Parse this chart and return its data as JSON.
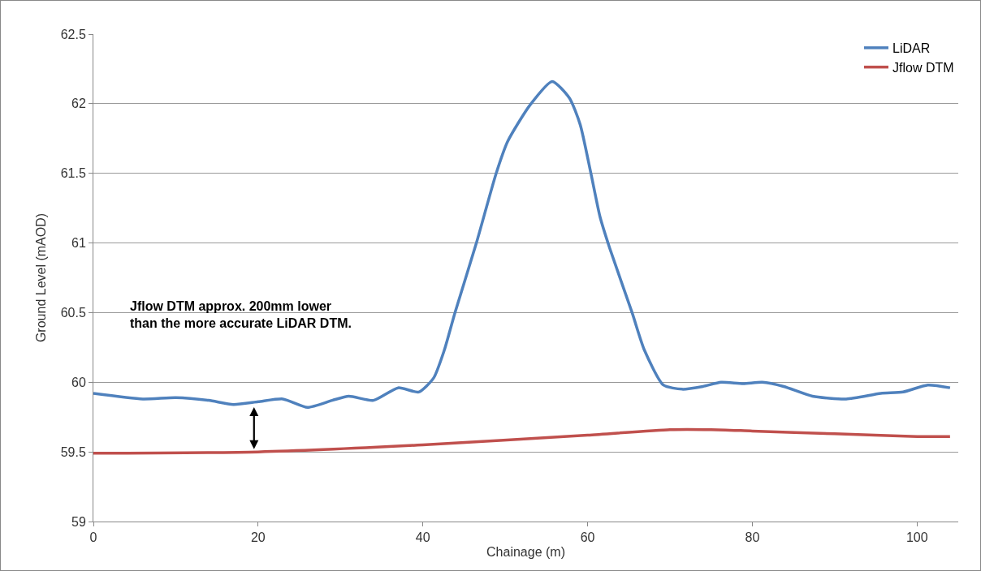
{
  "chart_data": {
    "type": "line",
    "xlabel": "Chainage (m)",
    "ylabel": "Ground Level (mAOD)",
    "xlim": [
      0,
      105
    ],
    "xticks": [
      0,
      20,
      40,
      60,
      80,
      100
    ],
    "ylim": [
      59,
      62.5
    ],
    "yticks": [
      59,
      59.5,
      60,
      60.5,
      61,
      61.5,
      62,
      62.5
    ],
    "grid": "y",
    "legend": "top right",
    "marker": "none",
    "line_style": "solid",
    "series": [
      {
        "name": "LiDAR",
        "color": "#4f81bd",
        "x": [
          0,
          6,
          10,
          14,
          17,
          20,
          23,
          26,
          29,
          31,
          34,
          37,
          39.5,
          41.3,
          42.6,
          43.9,
          46.5,
          48.9,
          50.3,
          53,
          55.7,
          57.8,
          59.1,
          60.4,
          61.5,
          62.7,
          65.4,
          66.9,
          69.2,
          71.5,
          74,
          76.2,
          78.9,
          81.2,
          83.8,
          87.3,
          91.4,
          95.6,
          98.3,
          101.3,
          104
        ],
        "values": [
          59.92,
          59.88,
          59.89,
          59.87,
          59.84,
          59.86,
          59.88,
          59.82,
          59.87,
          59.9,
          59.87,
          59.96,
          59.93,
          60.03,
          60.23,
          60.5,
          61.0,
          61.5,
          61.73,
          61.99,
          62.16,
          62.04,
          61.85,
          61.5,
          61.19,
          60.96,
          60.5,
          60.23,
          59.98,
          59.95,
          59.97,
          60.0,
          59.99,
          60.0,
          59.97,
          59.9,
          59.88,
          59.92,
          59.93,
          59.98,
          59.96
        ]
      },
      {
        "name": "Jflow DTM",
        "color": "#c0504d",
        "x": [
          0,
          20,
          40,
          60,
          70,
          75,
          80,
          90,
          100,
          104
        ],
        "values": [
          59.49,
          59.5,
          59.55,
          59.62,
          59.66,
          59.66,
          59.65,
          59.63,
          59.61,
          59.61
        ]
      }
    ],
    "annotations": [
      "Jflow DTM approx. 200mm lower\nthan the more accurate LiDAR DTM."
    ]
  }
}
